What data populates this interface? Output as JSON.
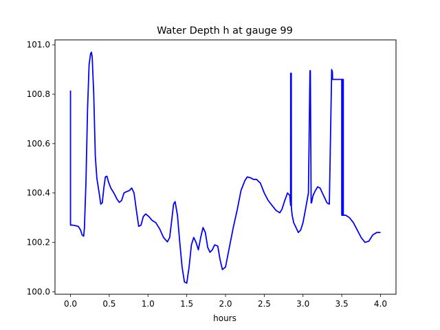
{
  "chart_data": {
    "type": "line",
    "title": "Water Depth h at gauge 99",
    "xlabel": "hours",
    "ylabel": "",
    "xlim": [
      -0.2,
      4.2
    ],
    "ylim": [
      99.99,
      101.02
    ],
    "xticks": [
      0.0,
      0.5,
      1.0,
      1.5,
      2.0,
      2.5,
      3.0,
      3.5,
      4.0
    ],
    "xtick_labels": [
      "0.0",
      "0.5",
      "1.0",
      "1.5",
      "2.0",
      "2.5",
      "3.0",
      "3.5",
      "4.0"
    ],
    "yticks": [
      100.0,
      100.2,
      100.4,
      100.6,
      100.8,
      101.0
    ],
    "ytick_labels": [
      "100.0",
      "100.2",
      "100.4",
      "100.6",
      "100.8",
      "101.0"
    ],
    "grid": false,
    "series": [
      {
        "color": "#0000ff",
        "x": [
          0.0,
          0.0,
          0.02,
          0.06,
          0.1,
          0.13,
          0.15,
          0.17,
          0.18,
          0.2,
          0.22,
          0.24,
          0.26,
          0.27,
          0.28,
          0.3,
          0.32,
          0.34,
          0.37,
          0.39,
          0.41,
          0.43,
          0.45,
          0.47,
          0.49,
          0.52,
          0.56,
          0.6,
          0.63,
          0.66,
          0.69,
          0.72,
          0.76,
          0.79,
          0.82,
          0.85,
          0.88,
          0.91,
          0.94,
          0.97,
          1.01,
          1.05,
          1.1,
          1.15,
          1.2,
          1.25,
          1.28,
          1.31,
          1.33,
          1.35,
          1.38,
          1.41,
          1.44,
          1.47,
          1.5,
          1.53,
          1.56,
          1.59,
          1.62,
          1.65,
          1.68,
          1.71,
          1.74,
          1.77,
          1.8,
          1.83,
          1.86,
          1.9,
          1.93,
          1.96,
          2.0,
          2.05,
          2.1,
          2.15,
          2.2,
          2.25,
          2.28,
          2.32,
          2.36,
          2.4,
          2.45,
          2.5,
          2.55,
          2.6,
          2.65,
          2.7,
          2.73,
          2.76,
          2.8,
          2.83,
          2.84,
          2.841,
          2.849,
          2.85,
          2.86,
          2.88,
          2.91,
          2.94,
          2.97,
          3.0,
          3.03,
          3.07,
          3.09,
          3.095,
          3.105,
          3.11,
          3.13,
          3.16,
          3.19,
          3.22,
          3.25,
          3.28,
          3.31,
          3.34,
          3.37,
          3.38,
          3.381,
          3.5,
          3.5,
          3.505,
          3.505,
          3.51,
          3.51,
          3.515,
          3.515,
          3.52,
          3.52,
          3.55,
          3.6,
          3.65,
          3.7,
          3.75,
          3.8,
          3.85,
          3.9,
          3.95,
          4.0
        ],
        "y": [
          100.815,
          100.27,
          100.27,
          100.268,
          100.265,
          100.25,
          100.23,
          100.225,
          100.26,
          100.45,
          100.74,
          100.92,
          100.965,
          100.97,
          100.95,
          100.8,
          100.55,
          100.46,
          100.4,
          100.355,
          100.36,
          100.42,
          100.465,
          100.468,
          100.445,
          100.42,
          100.4,
          100.375,
          100.362,
          100.37,
          100.4,
          100.405,
          100.41,
          100.42,
          100.4,
          100.33,
          100.265,
          100.27,
          100.305,
          100.315,
          100.305,
          100.29,
          100.28,
          100.255,
          100.22,
          100.202,
          100.22,
          100.3,
          100.355,
          100.365,
          100.31,
          100.2,
          100.1,
          100.04,
          100.035,
          100.1,
          100.19,
          100.22,
          100.2,
          100.17,
          100.22,
          100.26,
          100.24,
          100.18,
          100.16,
          100.17,
          100.19,
          100.185,
          100.13,
          100.09,
          100.1,
          100.18,
          100.26,
          100.33,
          100.41,
          100.45,
          100.465,
          100.462,
          100.455,
          100.455,
          100.44,
          100.4,
          100.37,
          100.35,
          100.33,
          100.32,
          100.335,
          100.365,
          100.4,
          100.39,
          100.35,
          100.885,
          100.885,
          100.34,
          100.31,
          100.28,
          100.26,
          100.24,
          100.25,
          100.28,
          100.33,
          100.4,
          100.895,
          100.895,
          100.36,
          100.36,
          100.39,
          100.41,
          100.425,
          100.42,
          100.4,
          100.38,
          100.36,
          100.355,
          100.9,
          100.89,
          100.86,
          100.86,
          100.31,
          100.31,
          100.86,
          100.86,
          100.31,
          100.31,
          100.86,
          100.86,
          100.31,
          100.31,
          100.3,
          100.28,
          100.25,
          100.22,
          100.2,
          100.205,
          100.23,
          100.24,
          100.24
        ]
      }
    ]
  }
}
